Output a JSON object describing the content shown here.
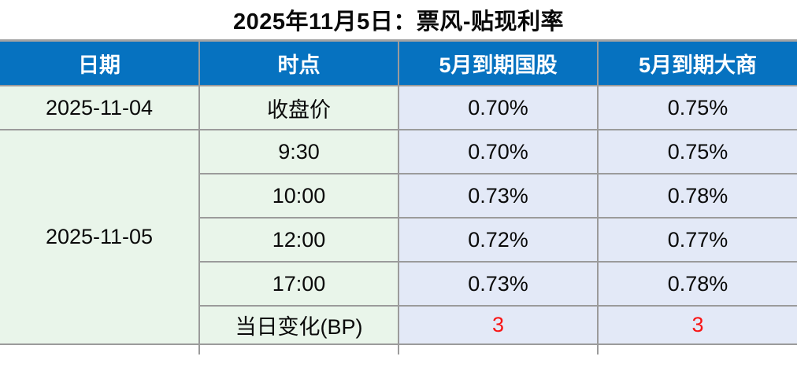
{
  "title": "2025年11月5日：票风-贴现利率",
  "table": {
    "headers": [
      "日期",
      "时点",
      "5月到期国股",
      "5月到期大商"
    ],
    "date_groups": [
      {
        "date": "2025-11-04",
        "rows": [
          [
            "收盘价",
            "0.70%",
            "0.75%"
          ]
        ]
      },
      {
        "date": "2025-11-05",
        "rows": [
          [
            "9:30",
            "0.70%",
            "0.75%"
          ],
          [
            "10:00",
            "0.73%",
            "0.78%"
          ],
          [
            "12:00",
            "0.72%",
            "0.77%"
          ],
          [
            "17:00",
            "0.73%",
            "0.78%"
          ],
          [
            "当日变化(BP)",
            "3",
            "3"
          ]
        ]
      }
    ]
  },
  "colors": {
    "header_bg": "#0672c0",
    "header_text": "#ffffff",
    "date_time_bg": "#e9f5ea",
    "rate_bg": "#e3e9f7",
    "grid_border": "#9b9b9b",
    "change_value_red": "#f81414",
    "title_text": "#0a0a0a",
    "page_bg": "#ffffff"
  }
}
